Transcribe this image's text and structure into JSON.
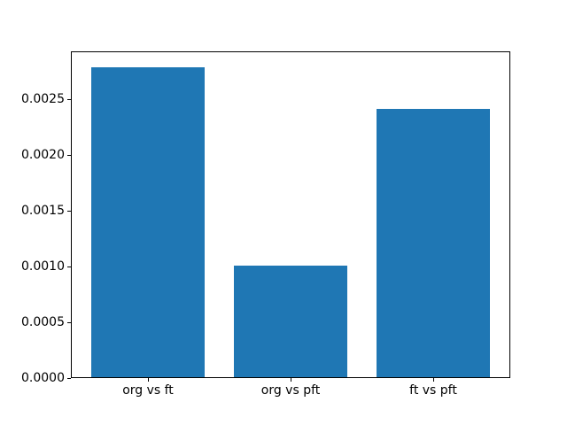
{
  "figure": {
    "background_color": "#ffffff",
    "frame_color": "#000000",
    "text_color": "#000000"
  },
  "chart_data": {
    "type": "bar",
    "title": "",
    "xlabel": "",
    "ylabel": "",
    "categories": [
      "org vs ft",
      "org vs pft",
      "ft vs pft"
    ],
    "values": [
      0.00279,
      0.00101,
      0.00241
    ],
    "bar_color": "#1f77b4",
    "bar_width": 0.8,
    "xlim": [
      -0.54,
      2.54
    ],
    "ylim": [
      0,
      0.0029295
    ],
    "yticks": [
      {
        "value": 0.0,
        "label": "0.0000"
      },
      {
        "value": 0.0005,
        "label": "0.0005"
      },
      {
        "value": 0.001,
        "label": "0.0010"
      },
      {
        "value": 0.0015,
        "label": "0.0015"
      },
      {
        "value": 0.002,
        "label": "0.0020"
      },
      {
        "value": 0.0025,
        "label": "0.0025"
      }
    ],
    "grid": false,
    "legend": null
  }
}
